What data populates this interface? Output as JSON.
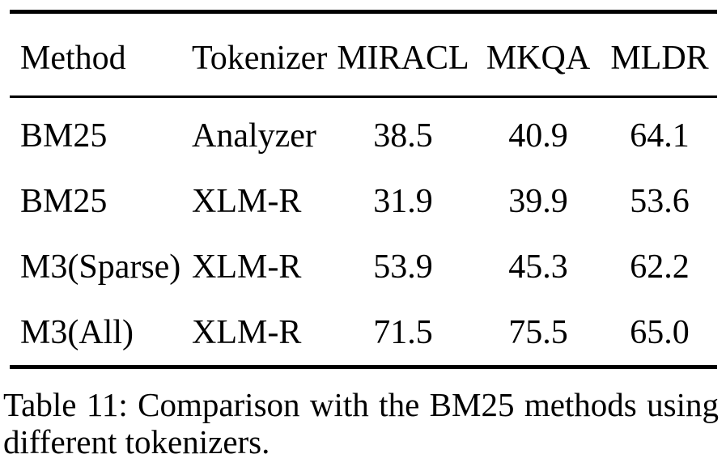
{
  "figure": {
    "kind": "academic-paper-table"
  },
  "table": {
    "columns": [
      "Method",
      "Tokenizer",
      "MIRACL",
      "MKQA",
      "MLDR"
    ],
    "rows": [
      [
        "BM25",
        "Analyzer",
        "38.5",
        "40.9",
        "64.1"
      ],
      [
        "BM25",
        "XLM-R",
        "31.9",
        "39.9",
        "53.6"
      ],
      [
        "M3(Sparse)",
        "XLM-R",
        "53.9",
        "45.3",
        "62.2"
      ],
      [
        "M3(All)",
        "XLM-R",
        "71.5",
        "75.5",
        "65.0"
      ]
    ]
  },
  "caption": {
    "line1": "Table 11: Comparison with the BM25 methods using",
    "line2": "different tokenizers."
  },
  "colors": {
    "text": "#000000",
    "background": "#ffffff",
    "rule": "#000000"
  }
}
